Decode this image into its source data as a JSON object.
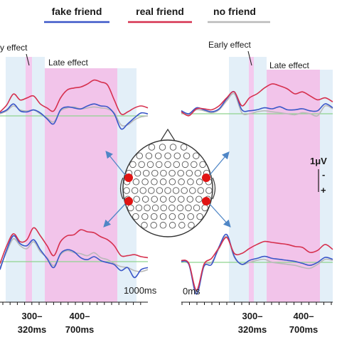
{
  "legend": [
    {
      "label": "fake friend",
      "color": "#3a56c8"
    },
    {
      "label": "real friend",
      "color": "#d6304e"
    },
    {
      "label": "no friend",
      "color": "#b9b9b9"
    }
  ],
  "annotations": {
    "early_effect_left": "y effect",
    "late_effect_left": "Late effect",
    "early_effect_right": "Early effect",
    "late_effect_right": "Late effect",
    "scale_value": "1μV",
    "scale_minus": "-",
    "scale_plus": "+",
    "time_end_label": "1000ms",
    "time_start_label": "0ms"
  },
  "time_windows": {
    "early": {
      "line1": "300–",
      "line2": "320ms",
      "start_ms": 300,
      "end_ms": 320
    },
    "late": {
      "line1": "400–",
      "line2": "700ms",
      "start_ms": 400,
      "end_ms": 700
    }
  },
  "colors": {
    "early_window": "#f4c9ee",
    "late_window": "#f2c4ea",
    "side_band": "#e3eff8",
    "baseline": "#8fd48f",
    "electrode": "#e01414",
    "arrow": "#4f86c6"
  },
  "chart_data": [
    {
      "type": "line",
      "panel": "top-left",
      "x_ms": [
        -100,
        -50,
        0,
        50,
        100,
        150,
        200,
        250,
        300,
        350,
        400,
        450,
        500,
        550,
        600,
        650,
        700,
        750,
        800,
        850,
        900,
        950,
        1000
      ],
      "series": [
        {
          "name": "fake friend",
          "values": [
            0.3,
            0.6,
            1.2,
            0.5,
            0.4,
            0.6,
            0.3,
            -0.3,
            -0.8,
            0.6,
            0.9,
            0.8,
            0.7,
            1.0,
            1.2,
            1.0,
            0.9,
            0.2,
            -1.3,
            -0.8,
            -0.2,
            0.3,
            0.2
          ]
        },
        {
          "name": "real friend",
          "values": [
            0.4,
            1.1,
            2.2,
            1.6,
            1.8,
            2.0,
            1.2,
            0.8,
            0.5,
            1.8,
            2.6,
            2.8,
            2.9,
            3.2,
            3.6,
            3.4,
            3.1,
            1.6,
            0.2,
            0.4,
            0.8,
            1.0,
            0.8
          ]
        },
        {
          "name": "no friend",
          "values": [
            0.2,
            0.5,
            1.0,
            0.6,
            0.5,
            0.6,
            0.2,
            -0.2,
            -0.6,
            0.5,
            0.8,
            0.9,
            0.7,
            0.8,
            0.9,
            0.8,
            0.7,
            0.3,
            -0.9,
            -0.9,
            -0.4,
            -0.1,
            0.0
          ]
        }
      ]
    },
    {
      "type": "line",
      "panel": "top-right",
      "x_ms": [
        0,
        50,
        100,
        150,
        200,
        250,
        300,
        350,
        400,
        450,
        500,
        550,
        600,
        650,
        700,
        750,
        800,
        850,
        900,
        950,
        1000
      ],
      "series": [
        {
          "name": "fake friend",
          "values": [
            0.3,
            0.0,
            0.6,
            0.4,
            0.2,
            0.5,
            1.5,
            2.2,
            0.4,
            0.3,
            0.4,
            0.6,
            0.5,
            0.7,
            0.4,
            0.4,
            0.5,
            0.3,
            0.3,
            1.0,
            0.6
          ]
        },
        {
          "name": "real friend",
          "values": [
            0.2,
            -0.2,
            0.5,
            0.5,
            0.4,
            0.8,
            1.6,
            2.2,
            0.8,
            1.6,
            2.0,
            2.6,
            3.0,
            2.8,
            2.5,
            2.0,
            2.2,
            1.8,
            1.4,
            1.6,
            1.2
          ]
        },
        {
          "name": "no friend",
          "values": [
            0.1,
            -0.1,
            0.4,
            0.3,
            0.1,
            0.4,
            1.3,
            2.0,
            0.1,
            0.0,
            0.2,
            0.3,
            0.2,
            0.1,
            0.0,
            -0.1,
            0.1,
            0.0,
            -0.2,
            0.8,
            0.5
          ]
        }
      ]
    },
    {
      "type": "line",
      "panel": "bottom-left",
      "x_ms": [
        -100,
        -50,
        0,
        50,
        100,
        150,
        200,
        250,
        300,
        350,
        400,
        450,
        500,
        550,
        600,
        650,
        700,
        750,
        800,
        850,
        900,
        950,
        1000
      ],
      "series": [
        {
          "name": "fake friend",
          "values": [
            -0.8,
            1.2,
            2.6,
            1.8,
            1.6,
            2.2,
            1.2,
            0.3,
            -0.6,
            0.8,
            1.2,
            1.0,
            0.4,
            0.2,
            0.5,
            0.1,
            -0.1,
            -0.3,
            -0.9,
            -0.6,
            -1.6,
            -0.8,
            -0.6
          ]
        },
        {
          "name": "real friend",
          "values": [
            -0.2,
            1.6,
            2.8,
            2.0,
            2.2,
            3.4,
            2.6,
            1.6,
            0.6,
            2.0,
            2.6,
            2.7,
            3.2,
            3.0,
            2.9,
            2.5,
            2.2,
            1.6,
            0.6,
            0.6,
            0.7,
            0.5,
            0.4
          ]
        },
        {
          "name": "no friend",
          "values": [
            -0.6,
            1.0,
            2.3,
            1.6,
            1.3,
            2.0,
            1.0,
            0.4,
            -0.4,
            0.7,
            1.1,
            0.9,
            0.8,
            0.6,
            0.9,
            0.4,
            0.2,
            -0.2,
            -0.5,
            -0.6,
            -0.9,
            -1.0,
            -0.8
          ]
        }
      ]
    },
    {
      "type": "line",
      "panel": "bottom-right",
      "x_ms": [
        0,
        50,
        100,
        150,
        200,
        250,
        300,
        350,
        400,
        450,
        500,
        550,
        600,
        650,
        700,
        750,
        800,
        850,
        900,
        950,
        1000
      ],
      "series": [
        {
          "name": "fake friend",
          "values": [
            0.1,
            -0.2,
            -3.2,
            -0.4,
            -0.2,
            1.6,
            2.8,
            0.6,
            -0.2,
            0.2,
            0.4,
            0.6,
            0.4,
            0.3,
            0.2,
            0.1,
            -0.1,
            -0.3,
            0.0,
            0.5,
            0.3
          ]
        },
        {
          "name": "real friend",
          "values": [
            0.2,
            -0.1,
            -2.8,
            -0.2,
            0.4,
            1.5,
            2.5,
            0.9,
            0.9,
            1.4,
            1.8,
            2.1,
            2.0,
            1.9,
            1.8,
            1.6,
            1.5,
            1.0,
            1.2,
            1.8,
            1.3
          ]
        },
        {
          "name": "no friend",
          "values": [
            0.1,
            -0.2,
            -3.0,
            -0.3,
            0.0,
            1.4,
            2.6,
            0.5,
            -0.2,
            0.0,
            0.2,
            0.3,
            0.0,
            -0.1,
            -0.2,
            -0.3,
            -0.5,
            -0.6,
            -0.2,
            0.3,
            0.2
          ]
        }
      ]
    }
  ]
}
